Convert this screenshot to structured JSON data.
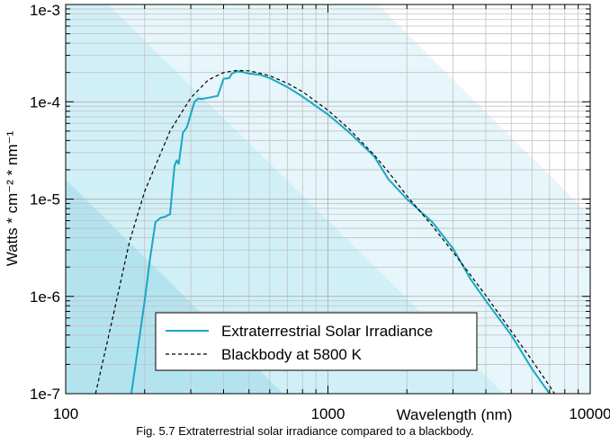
{
  "caption": "Fig. 5.7  Extraterrestrial solar irradiance compared to a blackbody.",
  "chart_data": {
    "type": "line",
    "xlabel": "Wavelength (nm)",
    "ylabel": "Watts * cm⁻² * nm⁻¹",
    "x_scale": "log",
    "y_scale": "log",
    "xlim": [
      100,
      10000
    ],
    "ylim": [
      1e-07,
      0.001
    ],
    "x_ticks": [
      {
        "value": 100,
        "label": "100"
      },
      {
        "value": 1000,
        "label": "1000"
      },
      {
        "value": 10000,
        "label": "10000"
      }
    ],
    "y_ticks": [
      {
        "value": 1e-07,
        "label": "1e-7"
      },
      {
        "value": 1e-06,
        "label": "1e-6"
      },
      {
        "value": 1e-05,
        "label": "1e-5"
      },
      {
        "value": 0.0001,
        "label": "1e-4"
      },
      {
        "value": 0.001,
        "label": "1e-3"
      }
    ],
    "grid": true,
    "legend_position": "bottom-center",
    "series": [
      {
        "name": "Extraterrestrial Solar Irradiance",
        "color": "#1aa7c4",
        "style": "solid",
        "x": [
          178,
          200,
          210,
          220,
          230,
          240,
          250,
          260,
          265,
          270,
          280,
          290,
          300,
          310,
          320,
          330,
          350,
          380,
          400,
          420,
          430,
          450,
          470,
          500,
          550,
          600,
          700,
          800,
          1000,
          1200,
          1500,
          1700,
          2000,
          2500,
          3000,
          3500,
          4000,
          5000,
          6000,
          7000
        ],
        "y": [
          1e-07,
          9e-07,
          2.5e-06,
          5.8e-06,
          6.4e-06,
          6.6e-06,
          7e-06,
          2.2e-05,
          2.5e-05,
          2.3e-05,
          4.8e-05,
          5.5e-05,
          7.5e-05,
          0.0001,
          0.000108,
          0.000107,
          0.00011,
          0.000115,
          0.000172,
          0.000175,
          0.000195,
          0.000205,
          0.000203,
          0.000195,
          0.00019,
          0.000175,
          0.000142,
          0.000113,
          7.4e-05,
          4.9e-05,
          2.75e-05,
          1.6e-05,
          1e-05,
          5.8e-06,
          3.1e-06,
          1.5e-06,
          9e-07,
          4e-07,
          1.8e-07,
          1e-07
        ]
      },
      {
        "name": "Blackbody at 5800 K",
        "color": "#000000",
        "style": "dashed",
        "x": [
          130,
          150,
          175,
          200,
          250,
          300,
          350,
          400,
          450,
          500,
          550,
          600,
          700,
          800,
          1000,
          1200,
          1500,
          1700,
          2000,
          2500,
          3000,
          3500,
          4000,
          5000,
          6000,
          7000,
          7500
        ],
        "y": [
          1e-07,
          5.5e-07,
          3.6e-06,
          1.2e-05,
          5e-05,
          0.00011,
          0.000168,
          0.0002,
          0.00021,
          0.000208,
          0.000197,
          0.000185,
          0.000155,
          0.000127,
          8.2e-05,
          5.3e-05,
          2.85e-05,
          1.9e-05,
          1.08e-05,
          5.3e-06,
          2.85e-06,
          1.65e-06,
          1.02e-06,
          4.4e-07,
          2.2e-07,
          1.2e-07,
          9e-08
        ]
      }
    ]
  }
}
